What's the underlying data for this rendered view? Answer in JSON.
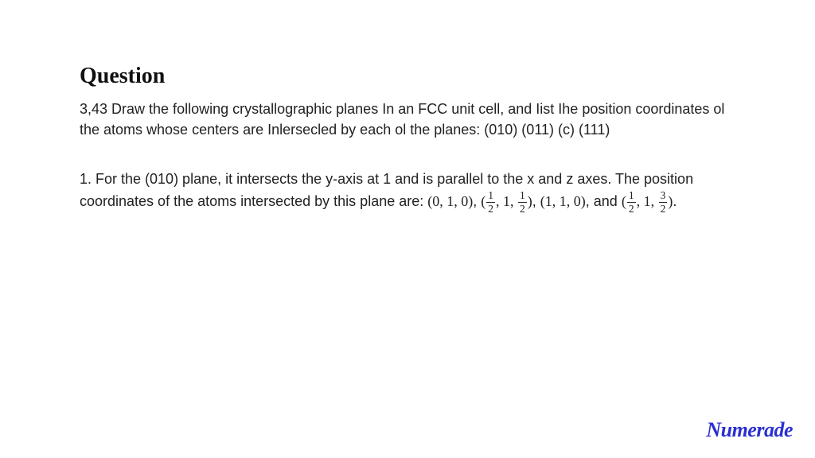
{
  "heading": "Question",
  "question_text": "3,43 Draw the following crystallographic planes In an FCC unit cell, and Iist Ihe position coordinates ol the atoms whose centers are Inlersecled by each ol the planes: (010) (011) (c) (111)",
  "answer": {
    "intro": "1. For the (010) plane, it intersects the y-axis at 1 and is parallel to the x and z axes. The position coordinates of the atoms intersected by this plane are: ",
    "coord1": {
      "a": "0",
      "b": "1",
      "c": "0"
    },
    "coord2": {
      "a_num": "1",
      "a_den": "2",
      "b": "1",
      "c_num": "1",
      "c_den": "2"
    },
    "coord3": {
      "a": "1",
      "b": "1",
      "c": "0"
    },
    "coord4": {
      "a_num": "1",
      "a_den": "2",
      "b": "1",
      "c_num": "3",
      "c_den": "2"
    },
    "sep_comma": ", ",
    "sep_and": ", and ",
    "period": "."
  },
  "logo": "Numerade",
  "colors": {
    "text": "#222222",
    "heading": "#111111",
    "logo": "#2b2fd1",
    "background": "#ffffff"
  },
  "typography": {
    "heading_fontsize": 28,
    "body_fontsize": 18,
    "logo_fontsize": 26
  }
}
